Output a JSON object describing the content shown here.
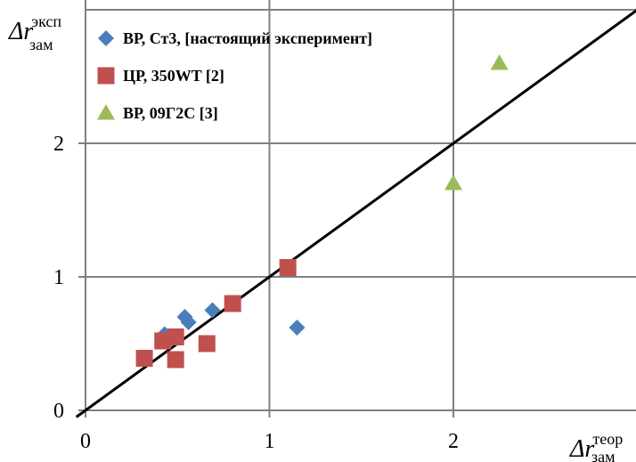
{
  "chart_data": {
    "type": "scatter",
    "xlabel": {
      "main": "Δr",
      "sup": "теор",
      "sub": "зам"
    },
    "ylabel": {
      "main": "Δr",
      "sup": "эксп",
      "sub": "зам"
    },
    "xlim": [
      0,
      3
    ],
    "ylim": [
      0,
      3
    ],
    "x_ticks": [
      0,
      1,
      2
    ],
    "y_ticks": [
      0,
      1,
      2
    ],
    "x_tick_labels": [
      "0",
      "1",
      "2"
    ],
    "y_tick_labels": [
      "0",
      "1",
      "2"
    ],
    "grid": true,
    "legend_position": "top-left",
    "reference_line": {
      "label": "y = x",
      "color": "#000000"
    },
    "series": [
      {
        "name": "ВР, Ст3, [настоящий эксперимент]",
        "marker": "diamond",
        "color": "#4a7ebb",
        "points": [
          {
            "x": 0.43,
            "y": 0.57
          },
          {
            "x": 0.54,
            "y": 0.7
          },
          {
            "x": 0.56,
            "y": 0.66
          },
          {
            "x": 0.69,
            "y": 0.75
          },
          {
            "x": 1.15,
            "y": 0.62
          }
        ]
      },
      {
        "name": "ЦР, 350WT [2]",
        "marker": "square",
        "color": "#c0504d",
        "points": [
          {
            "x": 0.32,
            "y": 0.39
          },
          {
            "x": 0.42,
            "y": 0.52
          },
          {
            "x": 0.49,
            "y": 0.55
          },
          {
            "x": 0.49,
            "y": 0.38
          },
          {
            "x": 0.66,
            "y": 0.5
          },
          {
            "x": 0.8,
            "y": 0.8
          },
          {
            "x": 1.1,
            "y": 1.07
          }
        ]
      },
      {
        "name": "ВР, 09Г2С [3]",
        "marker": "triangle",
        "color": "#9bbb59",
        "points": [
          {
            "x": 2.0,
            "y": 1.7
          },
          {
            "x": 2.25,
            "y": 2.6
          }
        ]
      }
    ]
  }
}
